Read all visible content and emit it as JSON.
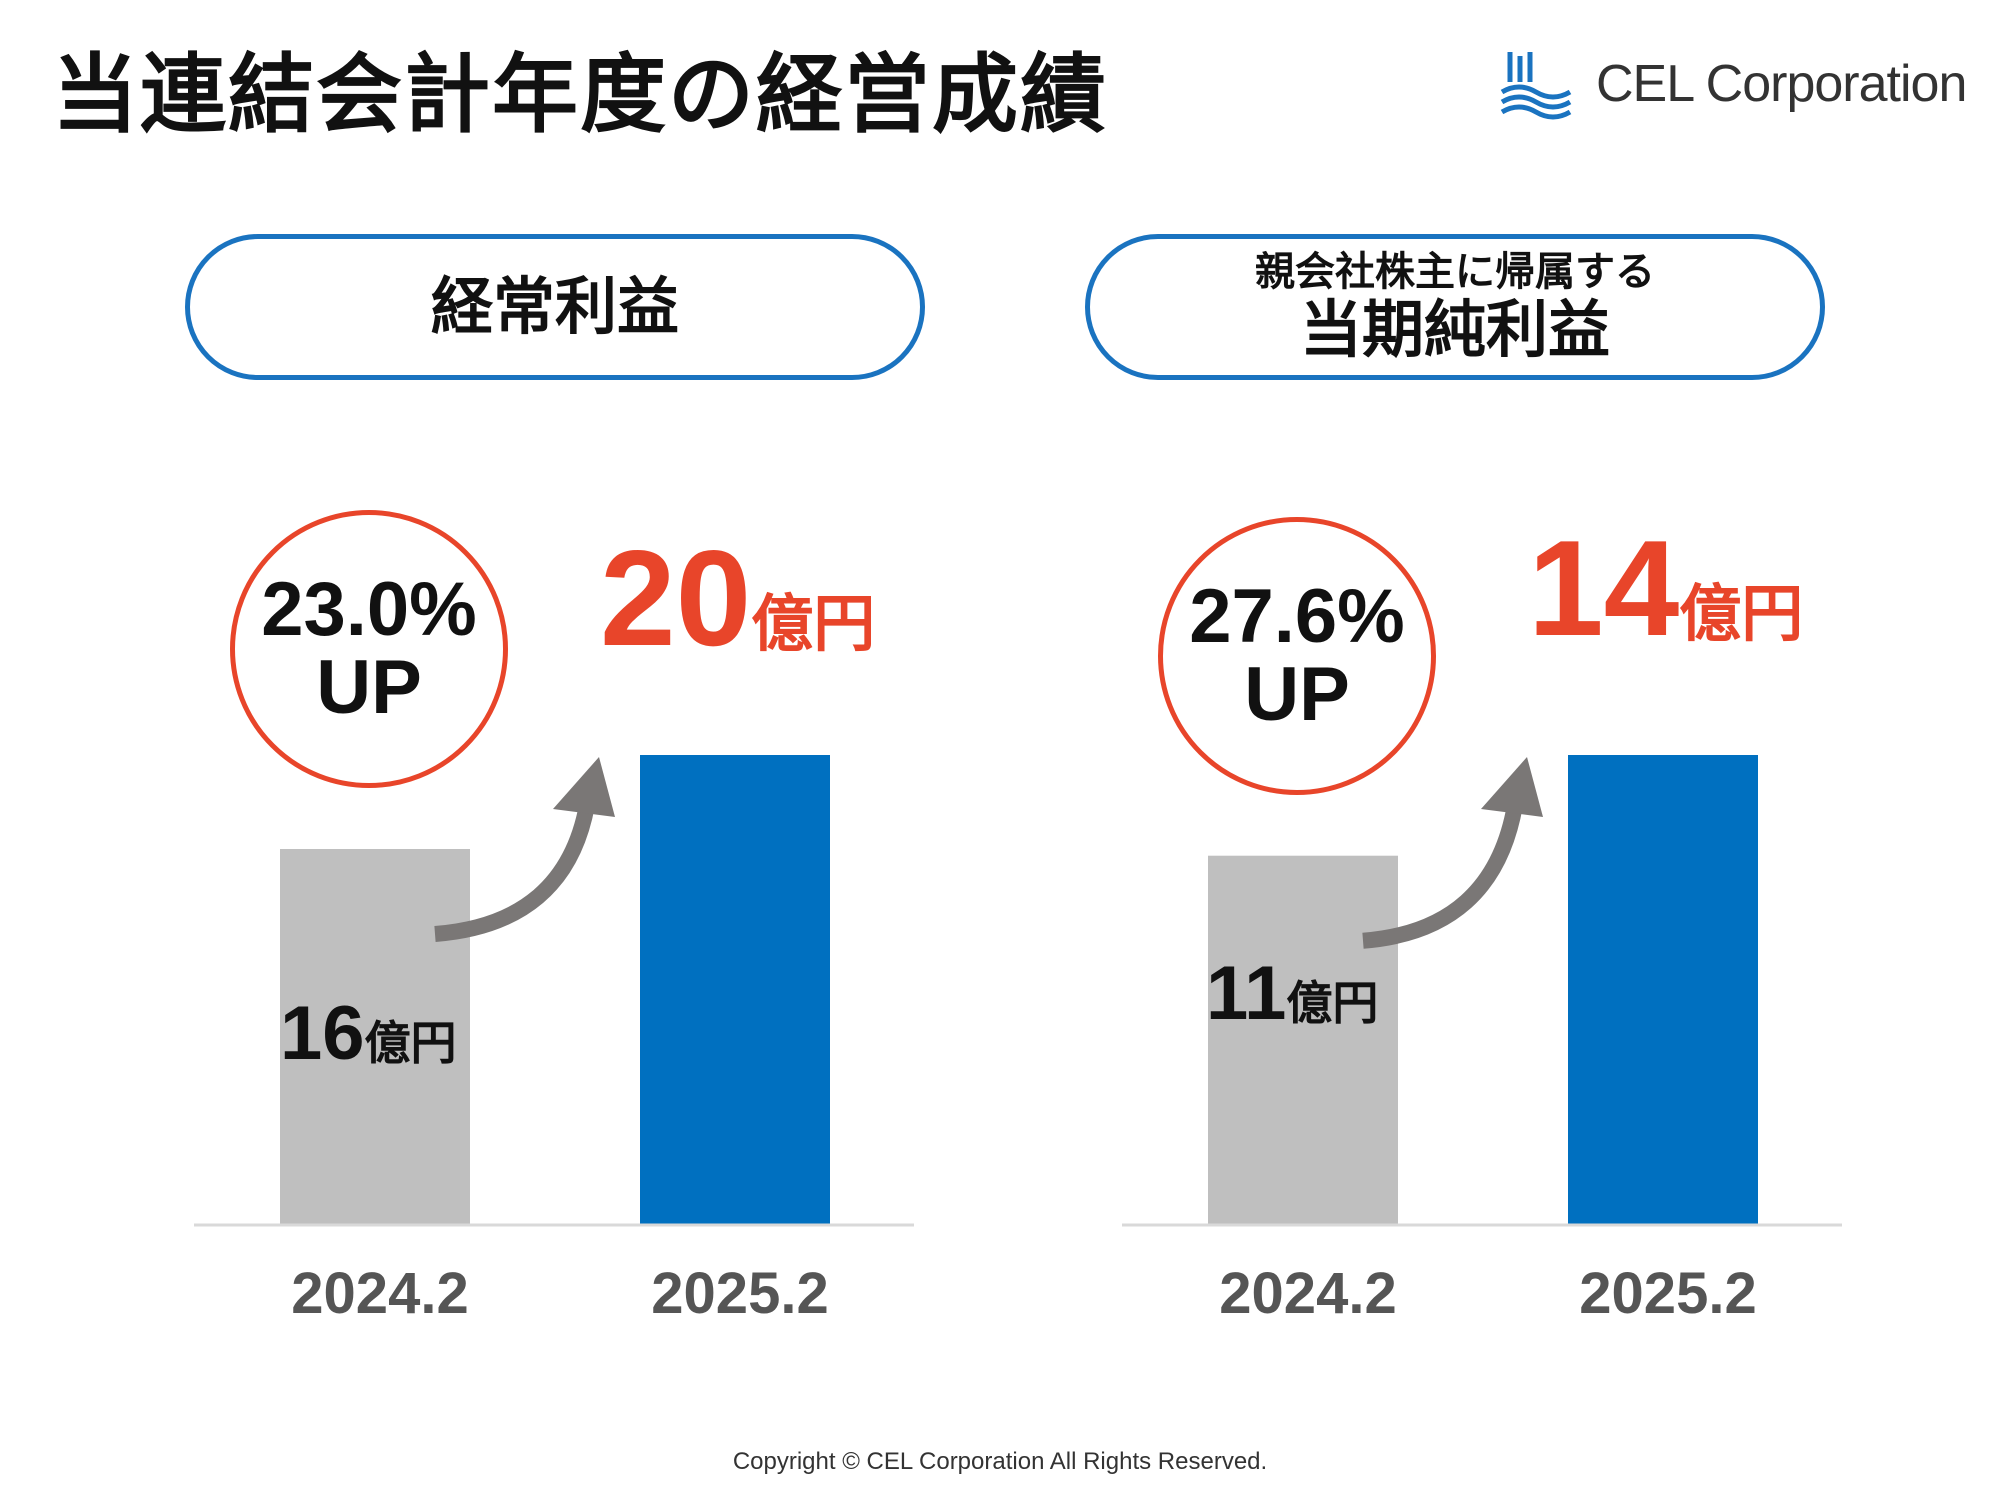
{
  "title": "当連結会計年度の経営成績",
  "logo": {
    "text": "CEL Corporation",
    "icon": "cel-wave-logo-icon"
  },
  "colors": {
    "accent": "#e8452a",
    "current_bar": "#0070c0",
    "prior_bar": "#bfbfbf",
    "label_border": "#1a73c0",
    "arrow": "#7a7776"
  },
  "panels": [
    {
      "label_main": "経常利益",
      "label_pre": "",
      "growth": {
        "value": "23.0%",
        "suffix": "UP"
      },
      "highlight": {
        "num": "20",
        "unit": "億円"
      },
      "base": {
        "num": "16",
        "unit": "億円"
      }
    },
    {
      "label_main": "当期純利益",
      "label_pre": "親会社株主に帰属する",
      "growth": {
        "value": "27.6%",
        "suffix": "UP"
      },
      "highlight": {
        "num": "14",
        "unit": "億円"
      },
      "base": {
        "num": "11",
        "unit": "億円"
      }
    }
  ],
  "chart_data": [
    {
      "type": "bar",
      "title": "経常利益",
      "categories": [
        "2024.2",
        "2025.2"
      ],
      "values": [
        16,
        20
      ],
      "unit": "億円",
      "annotation": "23.0% UP"
    },
    {
      "type": "bar",
      "title": "親会社株主に帰属する当期純利益",
      "categories": [
        "2024.2",
        "2025.2"
      ],
      "values": [
        11,
        14
      ],
      "unit": "億円",
      "annotation": "27.6% UP"
    }
  ],
  "footer": "Copyright © CEL Corporation All Rights Reserved."
}
